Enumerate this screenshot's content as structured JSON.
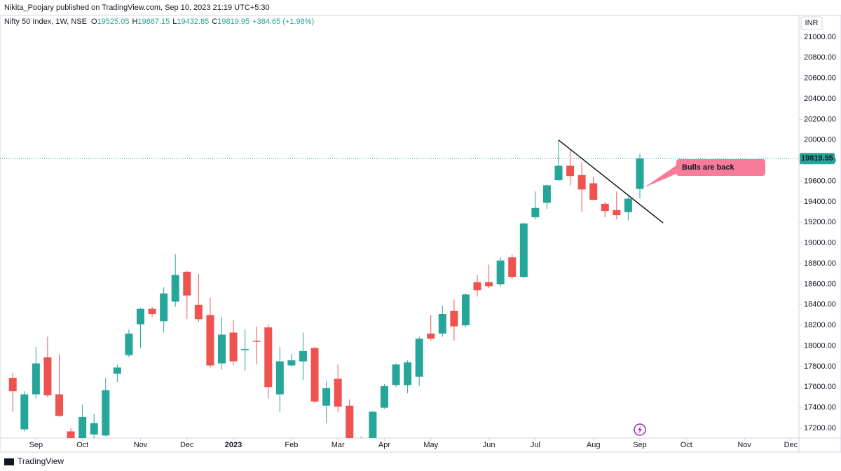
{
  "chart_data": {
    "type": "candlestick",
    "header": "Nikita_Poojary published on TradingView.com, Sep 10, 2023 21:19 UTC+5:30",
    "symbol": "Nifty 50 Index, 1W, NSE",
    "legend_labels": [
      "O",
      "H",
      "L",
      "C"
    ],
    "change": "+384.65 (+1.98%)",
    "currency": "INR",
    "footer": "TradingView",
    "annotation": "Bulls are back",
    "up_color": "#26a69a",
    "down_color": "#ef5350",
    "grid": false,
    "open": [
      17690,
      17190,
      17530,
      17890,
      17530,
      17170,
      17100,
      17140,
      17130,
      17730,
      17910,
      18210,
      18360,
      18240,
      18430,
      18720,
      18400,
      18300,
      17830,
      18130,
      17960,
      18050,
      18180,
      17530,
      17810,
      17850,
      17980,
      17420,
      17680,
      17420,
      16900,
      17040,
      17400,
      17620,
      17620,
      17700,
      18120,
      18120,
      18340,
      18200,
      18620,
      18620,
      18600,
      18860,
      18670,
      19250,
      19390,
      19610,
      19750,
      19660,
      19580,
      19380,
      19320,
      19300,
      19525.05
    ],
    "high": [
      17740,
      17560,
      17990,
      18090,
      17920,
      17200,
      17430,
      17340,
      17690,
      17820,
      18160,
      18370,
      18380,
      18570,
      18890,
      18730,
      18700,
      18470,
      18280,
      18250,
      18160,
      18190,
      18210,
      17990,
      17920,
      18130,
      17990,
      17660,
      17820,
      17480,
      17120,
      17370,
      17630,
      17830,
      17860,
      18090,
      18300,
      18390,
      18450,
      18510,
      18690,
      18790,
      18860,
      18890,
      19200,
      19500,
      19570,
      20000,
      19900,
      19780,
      19640,
      19400,
      19500,
      19450,
      19867.15
    ],
    "low": [
      17360,
      17170,
      17490,
      17500,
      17310,
      16980,
      17050,
      17100,
      17120,
      17650,
      17890,
      17980,
      18280,
      18130,
      18380,
      18260,
      18230,
      17790,
      17770,
      17810,
      17760,
      17820,
      17490,
      17360,
      17800,
      17670,
      17450,
      17250,
      17360,
      16830,
      16830,
      17000,
      17390,
      17600,
      17540,
      17610,
      18050,
      18090,
      18050,
      18180,
      18480,
      18560,
      18580,
      18650,
      18660,
      19230,
      19330,
      19600,
      19560,
      19300,
      19410,
      19250,
      19230,
      19220,
      19432.85
    ],
    "close": [
      17560,
      17530,
      17830,
      17520,
      17320,
      17050,
      17310,
      17250,
      17570,
      17790,
      18120,
      18360,
      18310,
      18510,
      18690,
      18490,
      18260,
      17810,
      18110,
      17850,
      17970,
      18040,
      17600,
      17850,
      17860,
      17950,
      17460,
      17590,
      17410,
      17080,
      17080,
      17360,
      17610,
      17820,
      17840,
      18070,
      18070,
      18310,
      18190,
      18500,
      18540,
      18580,
      18830,
      18670,
      19190,
      19340,
      19560,
      19750,
      19650,
      19520,
      19420,
      19310,
      19270,
      19430,
      19819.95
    ],
    "last_price": {
      "value": 19819.95,
      "label": "19819.95"
    },
    "trendline": {
      "x": [
        47,
        56
      ],
      "y": [
        20000,
        19195
      ]
    },
    "xlim": [
      -1.1,
      67.7
    ],
    "xticks": [
      {
        "value": 2,
        "label": "Sep"
      },
      {
        "value": 6,
        "label": "Oct"
      },
      {
        "value": 11,
        "label": "Nov"
      },
      {
        "value": 15,
        "label": "Dec"
      },
      {
        "value": 19,
        "label": "2023"
      },
      {
        "value": 24,
        "label": "Feb"
      },
      {
        "value": 28,
        "label": "Mar"
      },
      {
        "value": 32,
        "label": "Apr"
      },
      {
        "value": 36,
        "label": "May"
      },
      {
        "value": 41,
        "label": "Jun"
      },
      {
        "value": 45,
        "label": "Jul"
      },
      {
        "value": 50,
        "label": "Aug"
      },
      {
        "value": 54,
        "label": "Sep"
      },
      {
        "value": 58,
        "label": "Oct"
      },
      {
        "value": 63,
        "label": "Nov"
      },
      {
        "value": 67,
        "label": "Dec"
      }
    ],
    "ylim": [
      17105,
      21054
    ],
    "yticks": [
      {
        "value": 17200,
        "label": "17200.00"
      },
      {
        "value": 17400,
        "label": "17400.00"
      },
      {
        "value": 17600,
        "label": "17600.00"
      },
      {
        "value": 17800,
        "label": "17800.00"
      },
      {
        "value": 18000,
        "label": "18000.00"
      },
      {
        "value": 18200,
        "label": "18200.00"
      },
      {
        "value": 18400,
        "label": "18400.00"
      },
      {
        "value": 18600,
        "label": "18600.00"
      },
      {
        "value": 18800,
        "label": "18800.00"
      },
      {
        "value": 19000,
        "label": "19000.00"
      },
      {
        "value": 19200,
        "label": "19200.00"
      },
      {
        "value": 19400,
        "label": "19400.00"
      },
      {
        "value": 19600,
        "label": "19600.00"
      },
      {
        "value": 19800,
        "label": "19800.00"
      },
      {
        "value": 20000,
        "label": "20000.00"
      },
      {
        "value": 20200,
        "label": "20200.00"
      },
      {
        "value": 20400,
        "label": "20400.00"
      },
      {
        "value": 20600,
        "label": "20600.00"
      },
      {
        "value": 20800,
        "label": "20800.00"
      },
      {
        "value": 21000,
        "label": "21000.00"
      }
    ]
  }
}
